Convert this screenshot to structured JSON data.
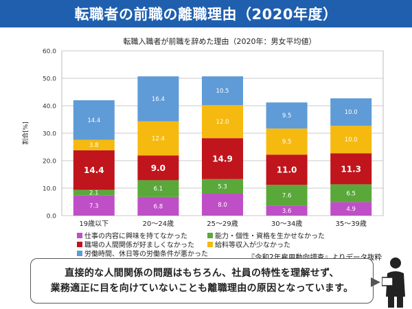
{
  "header": {
    "title": "転職者の前職の離職理由（2020年度）"
  },
  "chart_data": {
    "type": "bar",
    "stacked": true,
    "title": "転職入職者が前職を辞めた理由（2020年：男女平均値）",
    "ylabel": "割合[%]",
    "ylim": [
      0,
      60
    ],
    "yticks": [
      "0.0",
      "10.0",
      "20.0",
      "30.0",
      "40.0",
      "50.0",
      "60.0"
    ],
    "grid": true,
    "categories": [
      "19歳以下",
      "20～24歳",
      "25～29歳",
      "30～34歳",
      "35～39歳"
    ],
    "series": [
      {
        "name": "仕事の内容に興味を持てなかった",
        "color": "#bf4fc7",
        "values": [
          7.3,
          6.8,
          8.0,
          3.6,
          4.9
        ]
      },
      {
        "name": "能力・個性・資格を生かせなかった",
        "color": "#5ba83a",
        "values": [
          2.1,
          6.1,
          5.3,
          7.6,
          6.5
        ]
      },
      {
        "name": "職場の人間関係が好ましくなかった",
        "color": "#c0151c",
        "values": [
          14.4,
          9.0,
          14.9,
          11.0,
          11.3
        ]
      },
      {
        "name": "給料等収入が少なかった",
        "color": "#f6b90f",
        "values": [
          3.8,
          12.4,
          12.0,
          9.5,
          10.0
        ]
      },
      {
        "name": "労働時間、休日等の労働条件が悪かった",
        "color": "#5f9bd6",
        "values": [
          14.4,
          16.4,
          10.5,
          9.5,
          10.0
        ]
      }
    ],
    "legend_position": "bottom",
    "source": "『令和2年雇用動向調査』よりデータ抜粋"
  },
  "bubble": {
    "line1": "直接的な人間関係の問題はもちろん、社員の特性を理解せず、",
    "line2": "業務適正に目を向けていないことも離職理由の原因となっています。"
  }
}
